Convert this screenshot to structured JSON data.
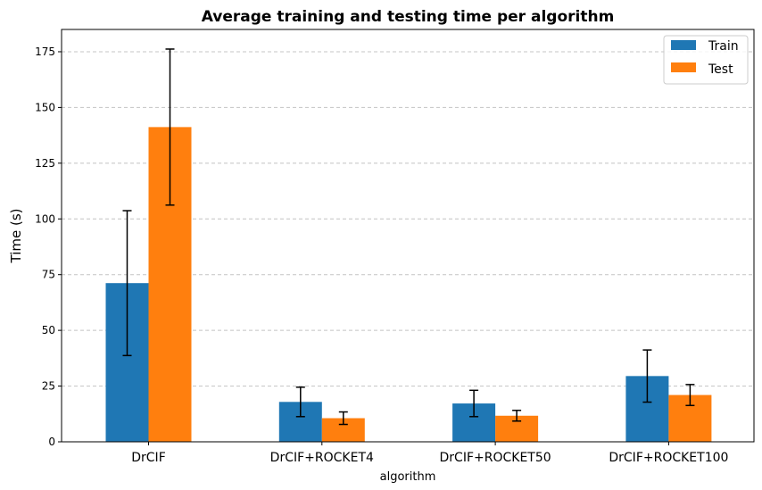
{
  "chart_data": {
    "type": "bar",
    "title": "Average training and testing time per algorithm",
    "xlabel": "algorithm",
    "ylabel": "Time (s)",
    "categories": [
      "DrCIF",
      "DrCIF+ROCKET4",
      "DrCIF+ROCKET50",
      "DrCIF+ROCKET100"
    ],
    "series": [
      {
        "name": "Train",
        "color": "#1f77b4",
        "values": [
          71.2,
          17.9,
          17.2,
          29.5
        ],
        "errors": [
          32.5,
          6.6,
          5.9,
          11.7
        ]
      },
      {
        "name": "Test",
        "color": "#ff7f0e",
        "values": [
          141.2,
          10.6,
          11.7,
          21.0
        ],
        "errors": [
          35.0,
          2.8,
          2.4,
          4.7
        ]
      }
    ],
    "ylim": [
      0,
      185
    ],
    "yticks": [
      0,
      25,
      50,
      75,
      100,
      125,
      150,
      175
    ],
    "grid": "y-dashed",
    "legend_position": "top-right"
  }
}
